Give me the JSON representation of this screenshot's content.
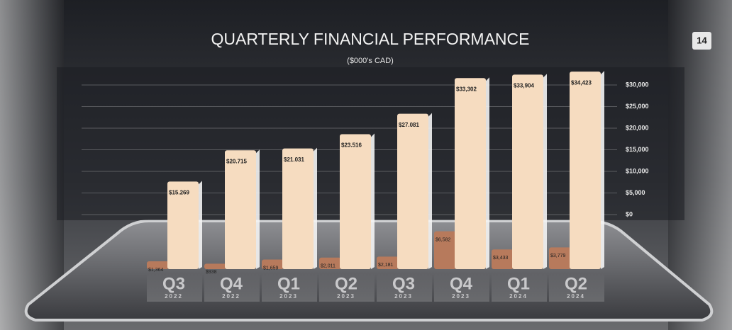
{
  "page_number": "14",
  "chart_data": {
    "type": "bar",
    "title": "QUARTERLY FINANCIAL PERFORMANCE",
    "subtitle": "($000's CAD)",
    "categories": [
      "Q3",
      "Q4",
      "Q1",
      "Q2",
      "Q3",
      "Q4",
      "Q1",
      "Q2"
    ],
    "years": [
      "2022",
      "2022",
      "2023",
      "2023",
      "2023",
      "2023",
      "2024",
      "2024"
    ],
    "series": [
      {
        "color": "#b77a5c",
        "values": [
          1364,
          938,
          1659,
          2011,
          2181,
          6582,
          3433,
          3779
        ],
        "value_labels": [
          "$1,364",
          "$938",
          "$1,659",
          "$2,011",
          "$2,181",
          "$6,582",
          "$3,433",
          "$3,779"
        ]
      },
      {
        "color": "#f6dcc0",
        "values": [
          15269,
          20715,
          21031,
          23516,
          27081,
          33302,
          33904,
          34423
        ],
        "value_labels": [
          "$15.269",
          "$20.715",
          "$21.031",
          "$23.516",
          "$27.081",
          "$33,302",
          "$33,904",
          "$34,423"
        ]
      }
    ],
    "ylim": [
      0,
      30000
    ],
    "yticks": [
      {
        "value": 0,
        "label": "$0"
      },
      {
        "value": 5000,
        "label": "$5,000"
      },
      {
        "value": 10000,
        "label": "$10,000"
      },
      {
        "value": 15000,
        "label": "$15,000"
      },
      {
        "value": 20000,
        "label": "$20,000"
      },
      {
        "value": 25000,
        "label": "$25,000"
      },
      {
        "value": 30000,
        "label": "$30,000"
      }
    ],
    "grid": true
  }
}
